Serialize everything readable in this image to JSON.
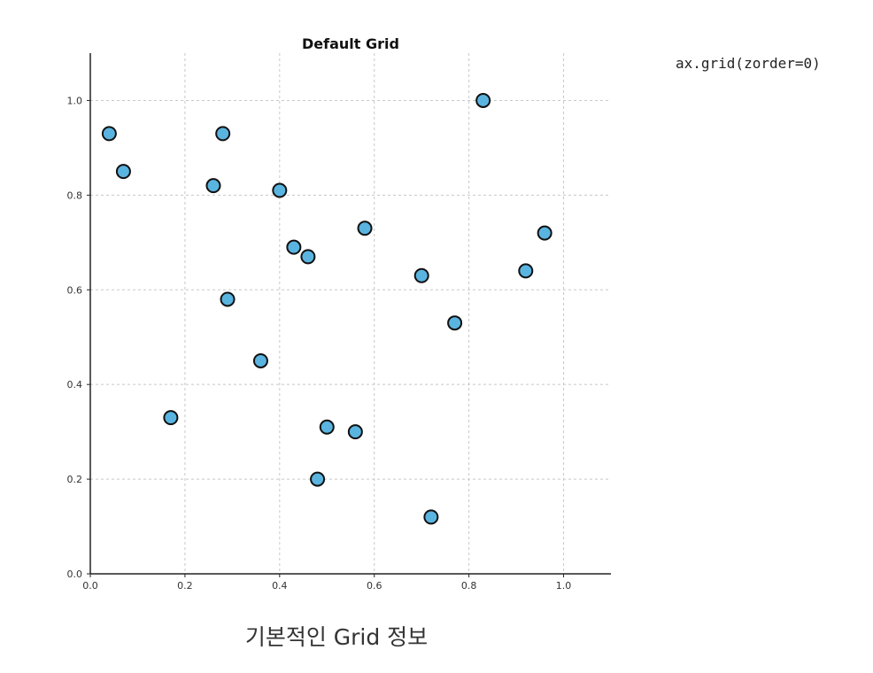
{
  "code_label": "ax.grid(zorder=0)",
  "caption": "기본적인 Grid 정보",
  "colors": {
    "marker_fill": "#5ab4e0",
    "marker_edge": "#111111",
    "grid": "#c8c8c8",
    "axis": "#222222"
  },
  "chart_data": {
    "type": "scatter",
    "title": "Default Grid",
    "xlabel": "",
    "ylabel": "",
    "xlim": [
      0,
      1.1
    ],
    "ylim": [
      0,
      1.1
    ],
    "grid": true,
    "grid_style": "dashed",
    "xticks": [
      0.0,
      0.2,
      0.4,
      0.6,
      0.8,
      1.0
    ],
    "yticks": [
      0.0,
      0.2,
      0.4,
      0.6,
      0.8,
      1.0
    ],
    "xtick_labels": [
      "0.0",
      "0.2",
      "0.4",
      "0.6",
      "0.8",
      "1.0"
    ],
    "ytick_labels": [
      "0.0",
      "0.2",
      "0.4",
      "0.6",
      "0.8",
      "1.0"
    ],
    "points": [
      {
        "x": 0.04,
        "y": 0.93
      },
      {
        "x": 0.07,
        "y": 0.85
      },
      {
        "x": 0.28,
        "y": 0.93
      },
      {
        "x": 0.26,
        "y": 0.82
      },
      {
        "x": 0.4,
        "y": 0.81
      },
      {
        "x": 0.43,
        "y": 0.69
      },
      {
        "x": 0.46,
        "y": 0.67
      },
      {
        "x": 0.58,
        "y": 0.73
      },
      {
        "x": 0.83,
        "y": 1.0
      },
      {
        "x": 0.96,
        "y": 0.72
      },
      {
        "x": 0.92,
        "y": 0.64
      },
      {
        "x": 0.7,
        "y": 0.63
      },
      {
        "x": 0.77,
        "y": 0.53
      },
      {
        "x": 0.29,
        "y": 0.58
      },
      {
        "x": 0.36,
        "y": 0.45
      },
      {
        "x": 0.17,
        "y": 0.33
      },
      {
        "x": 0.5,
        "y": 0.31
      },
      {
        "x": 0.56,
        "y": 0.3
      },
      {
        "x": 0.48,
        "y": 0.2
      },
      {
        "x": 0.72,
        "y": 0.12
      }
    ]
  }
}
